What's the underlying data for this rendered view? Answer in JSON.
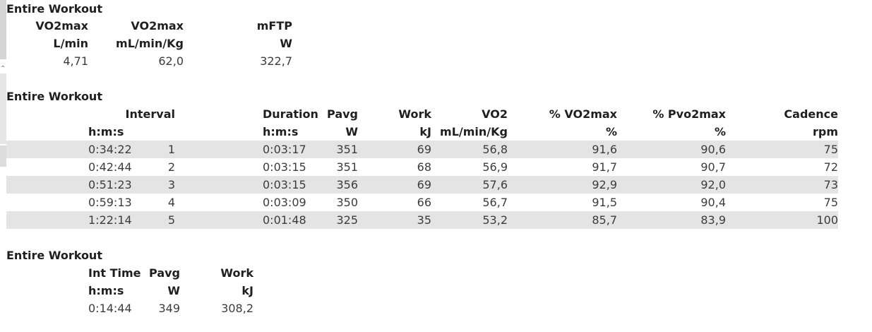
{
  "summary": {
    "title": "Entire Workout",
    "headers": [
      {
        "name": "VO2max",
        "unit": "L/min"
      },
      {
        "name": "VO2max",
        "unit": "mL/min/Kg"
      },
      {
        "name": "mFTP",
        "unit": "W"
      }
    ],
    "values": [
      "4,71",
      "62,0",
      "322,7"
    ]
  },
  "intervals": {
    "title": "Entire Workout",
    "headers": {
      "interval": "Interval",
      "time_unit": "h:m:s",
      "duration": "Duration",
      "duration_unit": "h:m:s",
      "pavg": "Pavg",
      "pavg_unit": "W",
      "work": "Work",
      "work_unit": "kJ",
      "vo2": "VO2",
      "vo2_unit": "mL/min/Kg",
      "pct_vo2max": "% VO2max",
      "pct_vo2max_unit": "%",
      "pct_pvo2max": "% Pvo2max",
      "pct_pvo2max_unit": "%",
      "cadence": "Cadence",
      "cadence_unit": "rpm"
    },
    "rows": [
      {
        "time": "0:34:22",
        "interval": "1",
        "duration": "0:03:17",
        "pavg": "351",
        "work": "69",
        "vo2": "56,8",
        "pct_vo2max": "91,6",
        "pct_pvo2max": "90,6",
        "cadence": "75"
      },
      {
        "time": "0:42:44",
        "interval": "2",
        "duration": "0:03:15",
        "pavg": "351",
        "work": "68",
        "vo2": "56,9",
        "pct_vo2max": "91,7",
        "pct_pvo2max": "90,7",
        "cadence": "72"
      },
      {
        "time": "0:51:23",
        "interval": "3",
        "duration": "0:03:15",
        "pavg": "356",
        "work": "69",
        "vo2": "57,6",
        "pct_vo2max": "92,9",
        "pct_pvo2max": "92,0",
        "cadence": "73"
      },
      {
        "time": "0:59:13",
        "interval": "4",
        "duration": "0:03:09",
        "pavg": "350",
        "work": "66",
        "vo2": "56,7",
        "pct_vo2max": "91,5",
        "pct_pvo2max": "90,4",
        "cadence": "75"
      },
      {
        "time": "1:22:14",
        "interval": "5",
        "duration": "0:01:48",
        "pavg": "325",
        "work": "35",
        "vo2": "53,2",
        "pct_vo2max": "85,7",
        "pct_pvo2max": "83,9",
        "cadence": "100"
      }
    ]
  },
  "totals": {
    "title": "Entire Workout",
    "headers": [
      {
        "name": "Int Time",
        "unit": "h:m:s"
      },
      {
        "name": "Pavg",
        "unit": "W"
      },
      {
        "name": "Work",
        "unit": "kJ"
      }
    ],
    "values": [
      "0:14:44",
      "349",
      "308,2"
    ]
  },
  "colors": {
    "band": "#e4e4e4",
    "text": "#3c3c3c",
    "header": "#1f1f1f"
  }
}
